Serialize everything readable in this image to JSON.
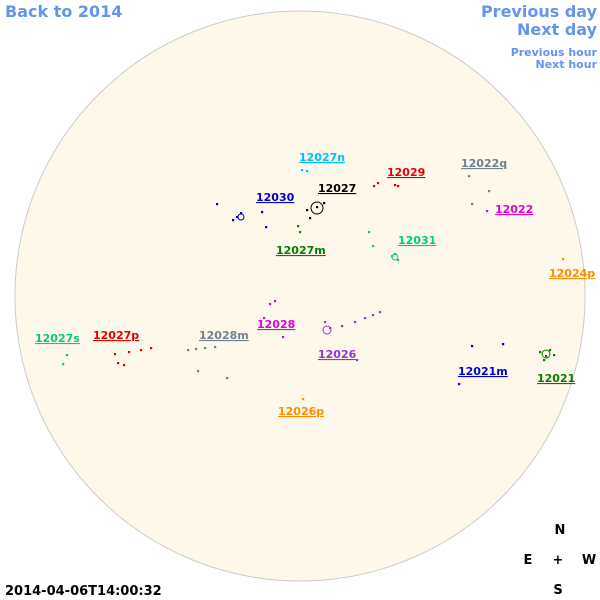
{
  "nav": {
    "back": "Back to 2014",
    "previous_day": "Previous day",
    "next_day": "Next day",
    "previous_hour": "Previous hour",
    "next_hour": "Next hour"
  },
  "regions": [
    {
      "label": "12027n",
      "color": "#00bfff"
    },
    {
      "label": "12029",
      "color": "#e00000"
    },
    {
      "label": "12022q",
      "color": "#708090"
    },
    {
      "label": "12027",
      "color": "#000000"
    },
    {
      "label": "12030",
      "color": "#0000cd"
    },
    {
      "label": "12022",
      "color": "#e000e0"
    },
    {
      "label": "12027m",
      "color": "#008000"
    },
    {
      "label": "12031",
      "color": "#00d070"
    },
    {
      "label": "12024p",
      "color": "#ff8c00"
    },
    {
      "label": "12027s",
      "color": "#00d070"
    },
    {
      "label": "12027p",
      "color": "#e00000"
    },
    {
      "label": "12028m",
      "color": "#708090"
    },
    {
      "label": "12028",
      "color": "#e000e0"
    },
    {
      "label": "12026",
      "color": "#9932cc"
    },
    {
      "label": "12021m",
      "color": "#0000cd"
    },
    {
      "label": "12021",
      "color": "#008000"
    },
    {
      "label": "12026p",
      "color": "#ff8c00"
    }
  ],
  "compass": {
    "north": "N",
    "east": "E",
    "center": "+",
    "west": "W",
    "south": "S"
  },
  "timestamp": "2014-04-06T14:00:32"
}
